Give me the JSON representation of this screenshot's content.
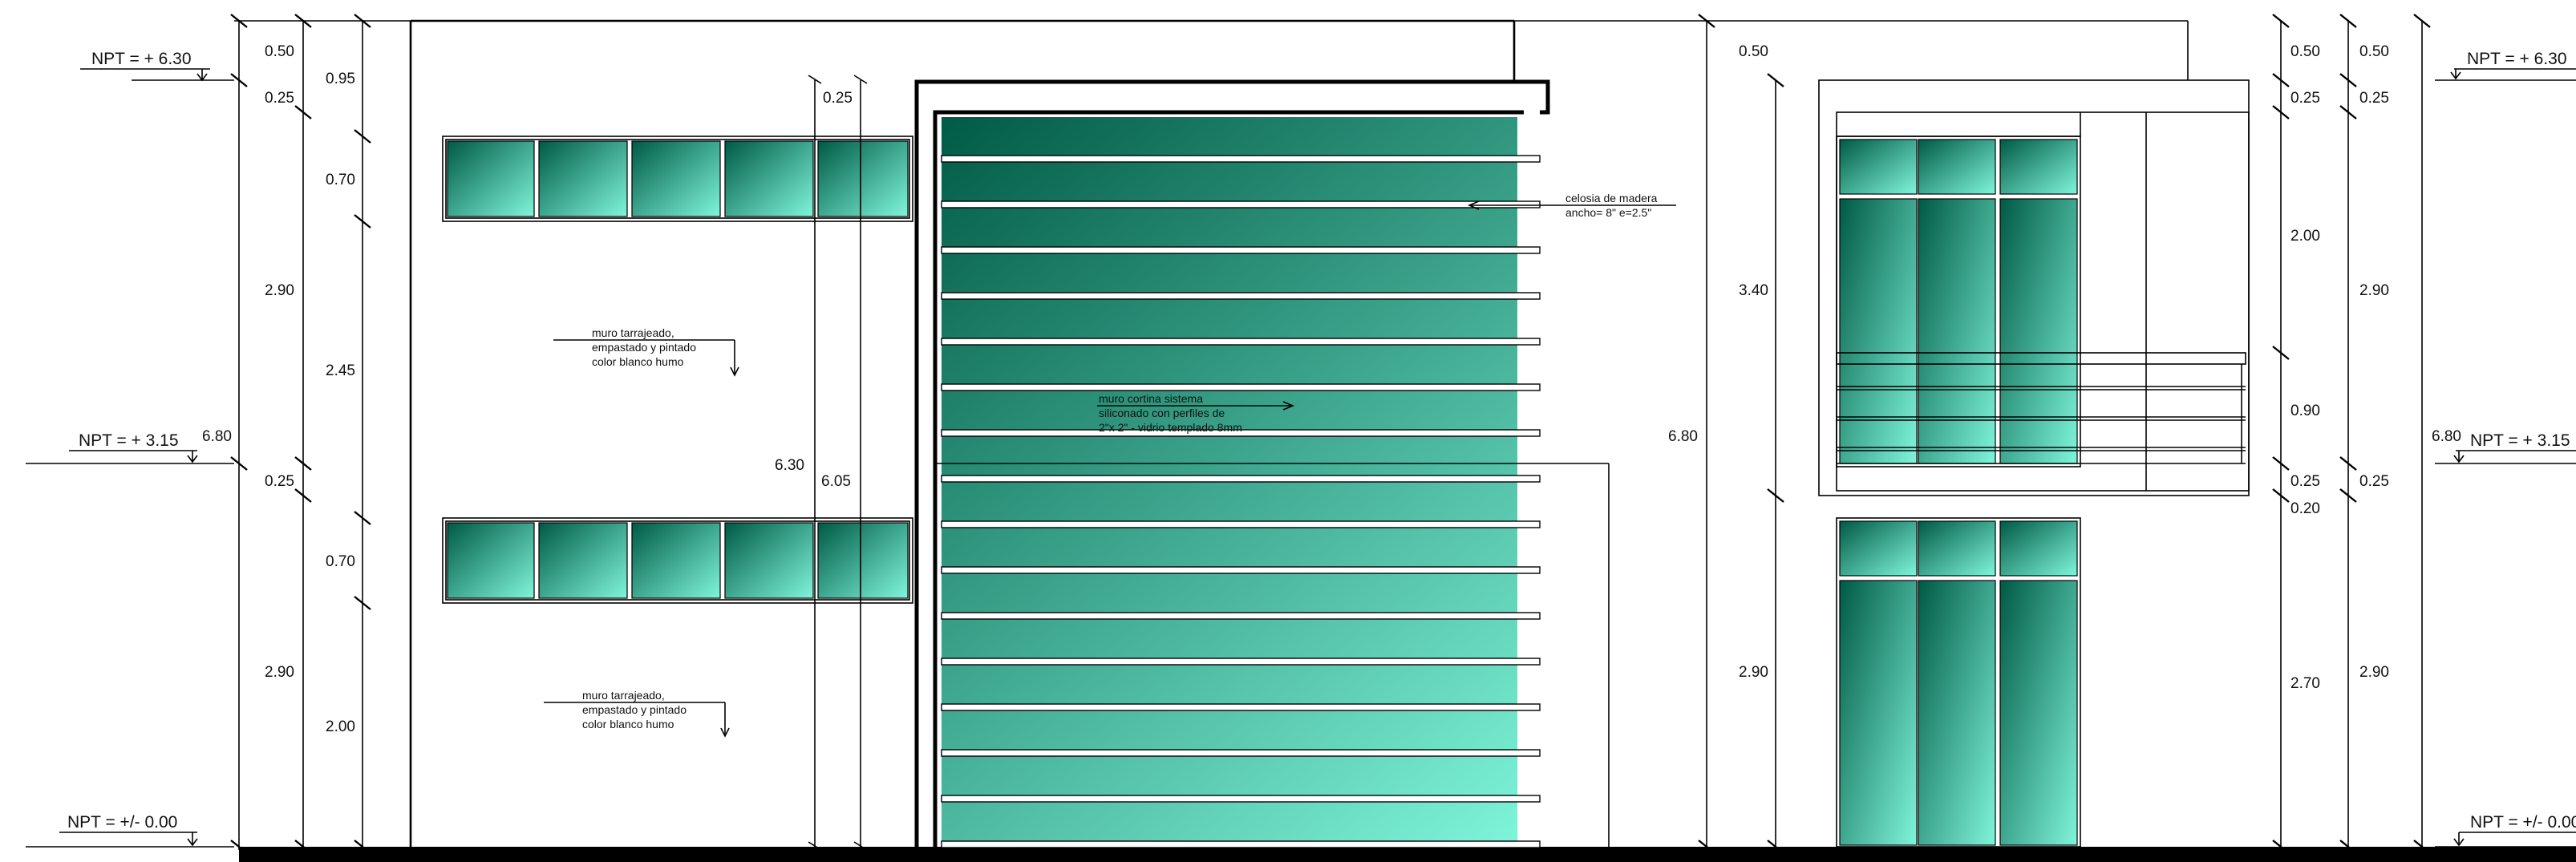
{
  "levels": {
    "top": "NPT = + 6.30",
    "middle": "NPT = + 3.15",
    "ground": "NPT = +/- 0.00"
  },
  "dims_left": {
    "c1_a": "0.50",
    "c1_b": "0.25",
    "c1_c": "2.90",
    "c1_d": "0.25",
    "c1_e": "2.90",
    "c2_a": "0.95",
    "c2_b": "0.70",
    "c2_c": "2.45",
    "c2_d": "0.70",
    "c2_e": "2.00",
    "total": "6.80"
  },
  "dims_center": {
    "top": "0.25",
    "h1": "6.30",
    "h2": "6.05"
  },
  "dims_right_block": {
    "top": "0.50",
    "a": "3.40",
    "b": "2.90",
    "total": "6.80"
  },
  "dims_right": {
    "c1_a": "0.50",
    "c1_b": "0.25",
    "c1_c": "2.00",
    "c1_d": "0.90",
    "c1_e": "0.25",
    "c1_f": "0.20",
    "c1_g": "2.70",
    "c2_a": "0.50",
    "c2_b": "0.25",
    "c2_c": "2.90",
    "c2_d": "0.25",
    "c2_e": "2.90",
    "total": "6.80"
  },
  "notes": {
    "wall_upper": [
      "muro tarrajeado,",
      "empastado y pintado",
      "color blanco humo"
    ],
    "wall_lower": [
      "muro tarrajeado,",
      "empastado y pintado",
      "color blanco humo"
    ],
    "curtain": [
      "muro cortina sistema",
      "siliconado con perfiles de",
      "2\"x 2\" - vidrio templado 8mm"
    ],
    "lattice": [
      "celosia de madera",
      "ancho= 8\" e=2.5\""
    ]
  },
  "colors": {
    "glass_dark": "#005a45",
    "glass_light": "#7ff5da",
    "ink": "#000000"
  }
}
